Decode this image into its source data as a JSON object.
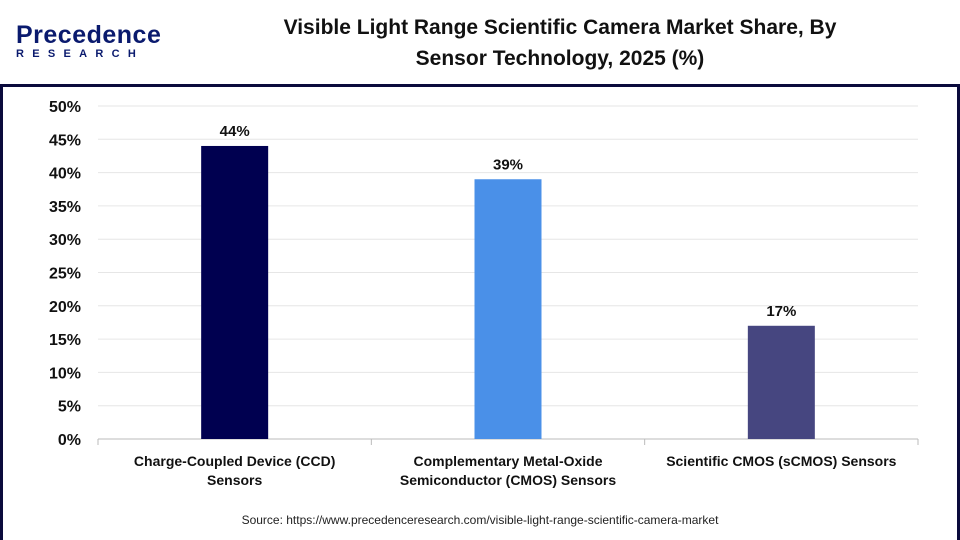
{
  "logo": {
    "line1": "Precedence",
    "line2": "RESEARCH"
  },
  "chart_data": {
    "type": "bar",
    "title": "Visible Light Range Scientific Camera Market Share, By Sensor Technology, 2025 (%)",
    "title_lines": [
      "Visible Light Range Scientific Camera Market Share, By",
      "Sensor Technology, 2025 (%)"
    ],
    "categories": [
      [
        "Charge-Coupled Device (CCD)",
        "Sensors"
      ],
      [
        "Complementary Metal-Oxide",
        "Semiconductor (CMOS) Sensors"
      ],
      [
        "Scientific CMOS (sCMOS) Sensors"
      ]
    ],
    "values": [
      44,
      39,
      17
    ],
    "data_labels": [
      "44%",
      "39%",
      "17%"
    ],
    "colors": [
      "#000050",
      "#4a90e8",
      "#464680"
    ],
    "ylim": [
      0,
      50
    ],
    "yticks": [
      "0%",
      "5%",
      "10%",
      "15%",
      "20%",
      "25%",
      "30%",
      "35%",
      "40%",
      "45%",
      "50%"
    ],
    "grid": true,
    "xlabel": "",
    "ylabel": ""
  },
  "source": "Source: https://www.precedenceresearch.com/visible-light-range-scientific-camera-market"
}
